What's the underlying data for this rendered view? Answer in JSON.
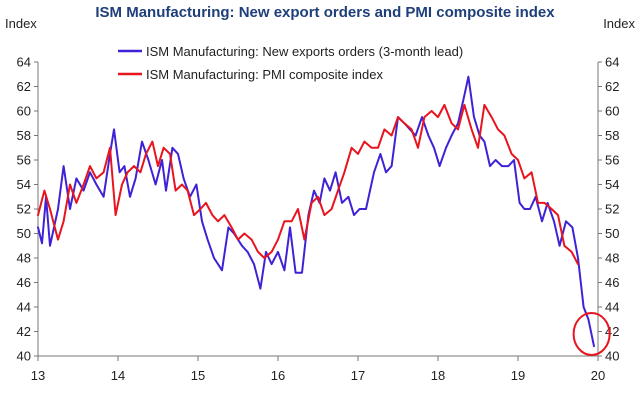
{
  "chart_data": {
    "type": "line",
    "title": "ISM Manufacturing: New export orders and PMI composite index",
    "ylabel_left": "Index",
    "ylabel_right": "Index",
    "ylim": [
      40,
      64
    ],
    "yticks": [
      40,
      42,
      44,
      46,
      48,
      50,
      52,
      54,
      56,
      58,
      60,
      62,
      64
    ],
    "xlim": [
      13,
      20
    ],
    "xticks": [
      "13",
      "14",
      "15",
      "16",
      "17",
      "18",
      "19",
      "20"
    ],
    "grid": false,
    "legend_position": "top-center",
    "colors": {
      "export": "#3f22d6",
      "pmi": "#e8141e",
      "annotation": "#e8141e"
    },
    "series": [
      {
        "name": "ISM Manufacturing: New exports orders (3-month lead)",
        "color": "#3f22d6",
        "x": [
          13.0,
          13.05,
          13.1,
          13.15,
          13.25,
          13.32,
          13.4,
          13.48,
          13.57,
          13.65,
          13.73,
          13.82,
          13.9,
          13.95,
          14.02,
          14.08,
          14.15,
          14.22,
          14.3,
          14.38,
          14.47,
          14.55,
          14.6,
          14.68,
          14.75,
          14.82,
          14.9,
          14.98,
          15.05,
          15.12,
          15.2,
          15.3,
          15.38,
          15.45,
          15.55,
          15.62,
          15.7,
          15.78,
          15.85,
          15.92,
          16.0,
          16.08,
          16.15,
          16.22,
          16.3,
          16.38,
          16.45,
          16.52,
          16.58,
          16.65,
          16.72,
          16.8,
          16.88,
          16.95,
          17.02,
          17.1,
          17.2,
          17.28,
          17.35,
          17.42,
          17.5,
          17.58,
          17.65,
          17.72,
          17.8,
          17.88,
          17.95,
          18.02,
          18.1,
          18.17,
          18.25,
          18.32,
          18.38,
          18.45,
          18.52,
          18.58,
          18.65,
          18.72,
          18.8,
          18.88,
          18.95,
          19.02,
          19.08,
          19.15,
          19.22,
          19.3,
          19.37,
          19.45,
          19.52,
          19.6,
          19.68,
          19.75,
          19.82,
          19.88,
          19.95
        ],
        "values": [
          50.5,
          49.2,
          53.0,
          49.0,
          52.0,
          55.5,
          52.0,
          54.5,
          53.5,
          55.0,
          54.0,
          53.0,
          56.5,
          58.5,
          55.0,
          55.5,
          53.0,
          54.5,
          57.5,
          56.0,
          54.0,
          56.0,
          53.5,
          57.0,
          56.5,
          54.5,
          53.0,
          54.0,
          51.0,
          49.5,
          48.0,
          47.0,
          50.5,
          50.0,
          49.0,
          48.5,
          47.5,
          45.5,
          48.5,
          47.5,
          48.5,
          47.0,
          50.5,
          46.8,
          46.8,
          51.5,
          53.5,
          52.5,
          54.5,
          53.5,
          55.0,
          52.5,
          53.0,
          51.5,
          52.0,
          52.0,
          55.0,
          56.5,
          55.0,
          55.5,
          59.5,
          59.0,
          58.5,
          58.0,
          59.5,
          58.0,
          57.0,
          55.5,
          57.0,
          58.0,
          59.0,
          61.0,
          62.8,
          59.5,
          58.0,
          57.5,
          55.5,
          56.0,
          55.5,
          55.5,
          56.0,
          52.5,
          52.0,
          52.0,
          53.0,
          51.0,
          52.5,
          51.0,
          49.0,
          51.0,
          50.5,
          48.0,
          44.0,
          43.0,
          40.8
        ]
      },
      {
        "name": "ISM Manufacturing: PMI composite index",
        "color": "#e8141e",
        "x": [
          13.0,
          13.08,
          13.15,
          13.25,
          13.32,
          13.4,
          13.48,
          13.57,
          13.65,
          13.73,
          13.82,
          13.9,
          13.97,
          14.05,
          14.12,
          14.2,
          14.28,
          14.35,
          14.43,
          14.5,
          14.57,
          14.65,
          14.72,
          14.8,
          14.87,
          14.95,
          15.03,
          15.1,
          15.18,
          15.25,
          15.33,
          15.42,
          15.5,
          15.58,
          15.67,
          15.75,
          15.83,
          15.92,
          16.0,
          16.08,
          16.17,
          16.25,
          16.33,
          16.42,
          16.5,
          16.58,
          16.67,
          16.75,
          16.83,
          16.92,
          17.0,
          17.08,
          17.17,
          17.25,
          17.33,
          17.42,
          17.5,
          17.58,
          17.67,
          17.75,
          17.83,
          17.92,
          18.0,
          18.08,
          18.17,
          18.25,
          18.33,
          18.42,
          18.5,
          18.58,
          18.67,
          18.75,
          18.83,
          18.92,
          19.0,
          19.08,
          19.17,
          19.25,
          19.33,
          19.42,
          19.5,
          19.58,
          19.67,
          19.75
        ],
        "values": [
          51.5,
          53.5,
          52.0,
          49.5,
          51.0,
          54.0,
          52.5,
          54.0,
          55.5,
          54.5,
          55.0,
          57.0,
          51.5,
          54.0,
          55.0,
          55.5,
          55.0,
          56.5,
          57.5,
          55.5,
          57.0,
          56.5,
          53.5,
          54.0,
          53.5,
          51.5,
          52.0,
          52.5,
          51.5,
          51.0,
          51.5,
          50.5,
          49.5,
          50.0,
          49.5,
          48.5,
          48.0,
          48.5,
          49.5,
          51.0,
          51.0,
          52.0,
          49.5,
          52.5,
          53.0,
          51.5,
          52.0,
          53.5,
          55.0,
          57.0,
          56.5,
          57.5,
          57.0,
          57.0,
          58.5,
          58.0,
          59.5,
          59.0,
          58.5,
          57.0,
          59.5,
          60.0,
          59.5,
          60.5,
          59.0,
          58.5,
          60.5,
          58.5,
          57.0,
          60.5,
          59.5,
          58.5,
          58.0,
          56.5,
          56.0,
          54.5,
          55.0,
          52.5,
          52.5,
          52.0,
          51.5,
          49.0,
          48.5,
          47.5
        ]
      }
    ],
    "annotations": [
      {
        "type": "circle",
        "x": 19.92,
        "y": 41.8,
        "color": "#e8141e"
      }
    ]
  }
}
